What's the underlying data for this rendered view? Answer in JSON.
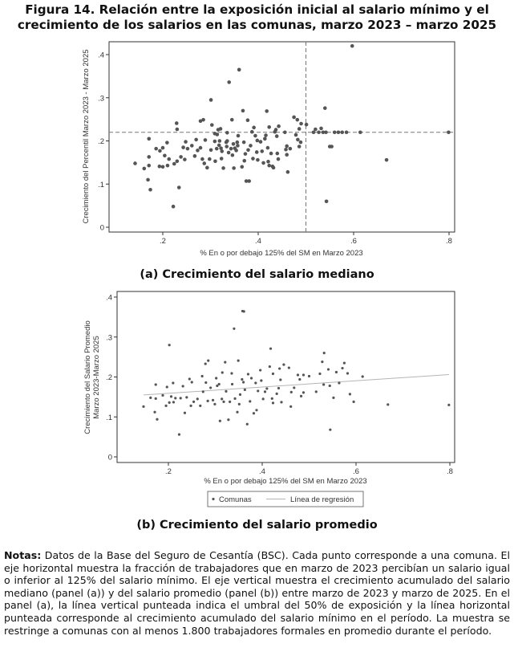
{
  "figure": {
    "title_line1": "Figura 14. Relación entre la exposición inicial al salario mínimo y el",
    "title_line2": "crecimiento de los salarios en las comunas, marzo 2023 – marzo 2025"
  },
  "notes": {
    "label": "Notas:",
    "text": " Datos de la Base del Seguro de Cesantía (BSC). Cada punto corresponde a una comuna. El eje horizontal muestra la fracción de trabajadores que en marzo de 2023 percibían un salario igual o inferior al 125% del salario mínimo. El eje vertical muestra el crecimiento acumulado del salario mediano (panel (a)) y del salario promedio (panel (b)) entre marzo de 2023 y marzo de 2025. En el panel (a), la línea vertical punteada indica el umbral del 50% de exposición y la línea horizontal punteada corresponde al crecimiento acumulado del salario mínimo en el período. La muestra se restringe a comunas con al menos 1.800 trabajadores formales en promedio durante el período."
  },
  "chart_data": [
    {
      "type": "scatter",
      "caption": "(a) Crecimiento del salario mediano",
      "xlabel": "% En o por debajo 125% del SM en Marzo 2023",
      "ylabel": "Crecimiento del Percentil  Marzo 2023 - Marzo 2025",
      "xticks": [
        ".2",
        ".4",
        ".6",
        ".8"
      ],
      "xtick_values": [
        0.2,
        0.4,
        0.6,
        0.8
      ],
      "yticks": [
        "0",
        ".1",
        ".2",
        ".3",
        ".4"
      ],
      "ytick_values": [
        0,
        0.1,
        0.2,
        0.3,
        0.4
      ],
      "xlim": [
        0.088,
        0.812
      ],
      "ylim": [
        -0.011,
        0.43
      ],
      "grid": false,
      "reference_lines": {
        "vertical_x": 0.5,
        "horizontal_y": 0.22,
        "style": "dashed"
      },
      "marker_color": "#555555",
      "points": [
        [
          0.142,
          0.148
        ],
        [
          0.161,
          0.136
        ],
        [
          0.171,
          0.205
        ],
        [
          0.171,
          0.163
        ],
        [
          0.171,
          0.143
        ],
        [
          0.169,
          0.11
        ],
        [
          0.174,
          0.087
        ],
        [
          0.186,
          0.182
        ],
        [
          0.194,
          0.177
        ],
        [
          0.2,
          0.184
        ],
        [
          0.193,
          0.141
        ],
        [
          0.2,
          0.14
        ],
        [
          0.204,
          0.166
        ],
        [
          0.209,
          0.196
        ],
        [
          0.21,
          0.143
        ],
        [
          0.213,
          0.158
        ],
        [
          0.222,
          0.048
        ],
        [
          0.224,
          0.147
        ],
        [
          0.229,
          0.241
        ],
        [
          0.23,
          0.227
        ],
        [
          0.23,
          0.153
        ],
        [
          0.234,
          0.092
        ],
        [
          0.238,
          0.163
        ],
        [
          0.243,
          0.185
        ],
        [
          0.248,
          0.198
        ],
        [
          0.246,
          0.157
        ],
        [
          0.252,
          0.182
        ],
        [
          0.261,
          0.189
        ],
        [
          0.27,
          0.203
        ],
        [
          0.267,
          0.165
        ],
        [
          0.273,
          0.178
        ],
        [
          0.279,
          0.184
        ],
        [
          0.279,
          0.246
        ],
        [
          0.285,
          0.249
        ],
        [
          0.283,
          0.158
        ],
        [
          0.287,
          0.148
        ],
        [
          0.289,
          0.202
        ],
        [
          0.293,
          0.138
        ],
        [
          0.298,
          0.158
        ],
        [
          0.301,
          0.295
        ],
        [
          0.303,
          0.237
        ],
        [
          0.301,
          0.179
        ],
        [
          0.309,
          0.217
        ],
        [
          0.309,
          0.199
        ],
        [
          0.31,
          0.153
        ],
        [
          0.313,
          0.182
        ],
        [
          0.314,
          0.215
        ],
        [
          0.316,
          0.226
        ],
        [
          0.318,
          0.19
        ],
        [
          0.319,
          0.2
        ],
        [
          0.321,
          0.228
        ],
        [
          0.322,
          0.183
        ],
        [
          0.323,
          0.159
        ],
        [
          0.324,
          0.176
        ],
        [
          0.327,
          0.137
        ],
        [
          0.333,
          0.197
        ],
        [
          0.334,
          0.187
        ],
        [
          0.335,
          0.2
        ],
        [
          0.335,
          0.219
        ],
        [
          0.338,
          0.173
        ],
        [
          0.339,
          0.336
        ],
        [
          0.343,
          0.182
        ],
        [
          0.345,
          0.249
        ],
        [
          0.346,
          0.167
        ],
        [
          0.348,
          0.193
        ],
        [
          0.349,
          0.137
        ],
        [
          0.351,
          0.183
        ],
        [
          0.354,
          0.178
        ],
        [
          0.356,
          0.197
        ],
        [
          0.358,
          0.212
        ],
        [
          0.36,
          0.365
        ],
        [
          0.357,
          0.189
        ],
        [
          0.366,
          0.14
        ],
        [
          0.368,
          0.27
        ],
        [
          0.37,
          0.197
        ],
        [
          0.371,
          0.154
        ],
        [
          0.373,
          0.17
        ],
        [
          0.375,
          0.107
        ],
        [
          0.378,
          0.248
        ],
        [
          0.381,
          0.107
        ],
        [
          0.379,
          0.179
        ],
        [
          0.384,
          0.189
        ],
        [
          0.387,
          0.221
        ],
        [
          0.389,
          0.159
        ],
        [
          0.391,
          0.231
        ],
        [
          0.394,
          0.212
        ],
        [
          0.397,
          0.174
        ],
        [
          0.399,
          0.156
        ],
        [
          0.398,
          0.201
        ],
        [
          0.405,
          0.198
        ],
        [
          0.408,
          0.176
        ],
        [
          0.411,
          0.149
        ],
        [
          0.414,
          0.205
        ],
        [
          0.416,
          0.213
        ],
        [
          0.418,
          0.269
        ],
        [
          0.42,
          0.184
        ],
        [
          0.421,
          0.152
        ],
        [
          0.423,
          0.232
        ],
        [
          0.423,
          0.143
        ],
        [
          0.427,
          0.171
        ],
        [
          0.43,
          0.141
        ],
        [
          0.432,
          0.138
        ],
        [
          0.435,
          0.221
        ],
        [
          0.437,
          0.226
        ],
        [
          0.439,
          0.211
        ],
        [
          0.44,
          0.171
        ],
        [
          0.442,
          0.158
        ],
        [
          0.443,
          0.234
        ],
        [
          0.456,
          0.22
        ],
        [
          0.458,
          0.18
        ],
        [
          0.46,
          0.188
        ],
        [
          0.46,
          0.168
        ],
        [
          0.462,
          0.128
        ],
        [
          0.467,
          0.182
        ],
        [
          0.475,
          0.255
        ],
        [
          0.479,
          0.214
        ],
        [
          0.482,
          0.249
        ],
        [
          0.483,
          0.203
        ],
        [
          0.486,
          0.228
        ],
        [
          0.486,
          0.187
        ],
        [
          0.489,
          0.197
        ],
        [
          0.49,
          0.24
        ],
        [
          0.501,
          0.238
        ],
        [
          0.516,
          0.22
        ],
        [
          0.52,
          0.227
        ],
        [
          0.527,
          0.22
        ],
        [
          0.532,
          0.229
        ],
        [
          0.536,
          0.22
        ],
        [
          0.54,
          0.276
        ],
        [
          0.542,
          0.22
        ],
        [
          0.543,
          0.06
        ],
        [
          0.55,
          0.187
        ],
        [
          0.554,
          0.187
        ],
        [
          0.56,
          0.22
        ],
        [
          0.568,
          0.22
        ],
        [
          0.576,
          0.22
        ],
        [
          0.585,
          0.22
        ],
        [
          0.597,
          0.42
        ],
        [
          0.614,
          0.22
        ],
        [
          0.669,
          0.156
        ],
        [
          0.799,
          0.22
        ]
      ]
    },
    {
      "type": "scatter",
      "caption": "(b) Crecimiento del salario promedio",
      "xlabel": "% En o por debajo 125% del SM en Marzo 2023",
      "ylabel_line1": "Crecimiento del Salario Promedio",
      "ylabel_line2": "Marzo 2023-Marzo 2025",
      "xticks": [
        ".2",
        ".4",
        ".6",
        ".8"
      ],
      "xtick_values": [
        0.2,
        0.4,
        0.6,
        0.8
      ],
      "yticks": [
        "0",
        ".1",
        ".2",
        ".3",
        ".4"
      ],
      "ytick_values": [
        0,
        0.1,
        0.2,
        0.3,
        0.4
      ],
      "xlim": [
        0.107,
        0.82
      ],
      "ylim": [
        -0.014,
        0.414
      ],
      "grid": false,
      "legend": {
        "placement": "bottom",
        "entries": [
          "Comunas",
          "Línea de regresión"
        ]
      },
      "marker_color": "#555555",
      "regression_line": {
        "x": [
          0.147,
          0.798
        ],
        "y": [
          0.155,
          0.206
        ],
        "color": "#b5b5b5"
      },
      "points": [
        [
          0.147,
          0.126
        ],
        [
          0.162,
          0.148
        ],
        [
          0.171,
          0.112
        ],
        [
          0.173,
          0.181
        ],
        [
          0.173,
          0.146
        ],
        [
          0.176,
          0.094
        ],
        [
          0.188,
          0.154
        ],
        [
          0.195,
          0.128
        ],
        [
          0.197,
          0.175
        ],
        [
          0.202,
          0.28
        ],
        [
          0.202,
          0.136
        ],
        [
          0.206,
          0.151
        ],
        [
          0.21,
          0.185
        ],
        [
          0.211,
          0.137
        ],
        [
          0.215,
          0.147
        ],
        [
          0.223,
          0.056
        ],
        [
          0.226,
          0.147
        ],
        [
          0.231,
          0.177
        ],
        [
          0.235,
          0.11
        ],
        [
          0.239,
          0.149
        ],
        [
          0.245,
          0.195
        ],
        [
          0.248,
          0.128
        ],
        [
          0.25,
          0.187
        ],
        [
          0.254,
          0.138
        ],
        [
          0.262,
          0.145
        ],
        [
          0.268,
          0.128
        ],
        [
          0.272,
          0.202
        ],
        [
          0.274,
          0.163
        ],
        [
          0.279,
          0.233
        ],
        [
          0.28,
          0.186
        ],
        [
          0.285,
          0.241
        ],
        [
          0.284,
          0.14
        ],
        [
          0.29,
          0.173
        ],
        [
          0.295,
          0.142
        ],
        [
          0.299,
          0.132
        ],
        [
          0.302,
          0.197
        ],
        [
          0.304,
          0.178
        ],
        [
          0.308,
          0.182
        ],
        [
          0.31,
          0.09
        ],
        [
          0.314,
          0.145
        ],
        [
          0.315,
          0.211
        ],
        [
          0.318,
          0.138
        ],
        [
          0.321,
          0.237
        ],
        [
          0.323,
          0.164
        ],
        [
          0.328,
          0.093
        ],
        [
          0.331,
          0.138
        ],
        [
          0.335,
          0.209
        ],
        [
          0.336,
          0.182
        ],
        [
          0.34,
          0.321
        ],
        [
          0.342,
          0.146
        ],
        [
          0.347,
          0.112
        ],
        [
          0.349,
          0.241
        ],
        [
          0.351,
          0.132
        ],
        [
          0.353,
          0.156
        ],
        [
          0.357,
          0.194
        ],
        [
          0.358,
          0.365
        ],
        [
          0.361,
          0.364
        ],
        [
          0.36,
          0.187
        ],
        [
          0.363,
          0.168
        ],
        [
          0.368,
          0.082
        ],
        [
          0.37,
          0.207
        ],
        [
          0.374,
          0.139
        ],
        [
          0.377,
          0.197
        ],
        [
          0.382,
          0.109
        ],
        [
          0.386,
          0.185
        ],
        [
          0.388,
          0.117
        ],
        [
          0.391,
          0.165
        ],
        [
          0.396,
          0.217
        ],
        [
          0.398,
          0.191
        ],
        [
          0.402,
          0.145
        ],
        [
          0.406,
          0.163
        ],
        [
          0.41,
          0.171
        ],
        [
          0.416,
          0.226
        ],
        [
          0.418,
          0.271
        ],
        [
          0.421,
          0.146
        ],
        [
          0.423,
          0.208
        ],
        [
          0.423,
          0.135
        ],
        [
          0.431,
          0.158
        ],
        [
          0.435,
          0.172
        ],
        [
          0.437,
          0.221
        ],
        [
          0.439,
          0.193
        ],
        [
          0.441,
          0.137
        ],
        [
          0.446,
          0.231
        ],
        [
          0.457,
          0.223
        ],
        [
          0.461,
          0.126
        ],
        [
          0.462,
          0.162
        ],
        [
          0.468,
          0.173
        ],
        [
          0.476,
          0.205
        ],
        [
          0.48,
          0.194
        ],
        [
          0.483,
          0.152
        ],
        [
          0.488,
          0.205
        ],
        [
          0.488,
          0.161
        ],
        [
          0.5,
          0.202
        ],
        [
          0.515,
          0.163
        ],
        [
          0.523,
          0.208
        ],
        [
          0.528,
          0.238
        ],
        [
          0.531,
          0.181
        ],
        [
          0.532,
          0.26
        ],
        [
          0.541,
          0.219
        ],
        [
          0.544,
          0.178
        ],
        [
          0.545,
          0.068
        ],
        [
          0.552,
          0.148
        ],
        [
          0.558,
          0.212
        ],
        [
          0.564,
          0.185
        ],
        [
          0.571,
          0.222
        ],
        [
          0.575,
          0.235
        ],
        [
          0.582,
          0.209
        ],
        [
          0.587,
          0.157
        ],
        [
          0.595,
          0.138
        ],
        [
          0.614,
          0.201
        ],
        [
          0.668,
          0.131
        ],
        [
          0.798,
          0.13
        ]
      ]
    }
  ]
}
